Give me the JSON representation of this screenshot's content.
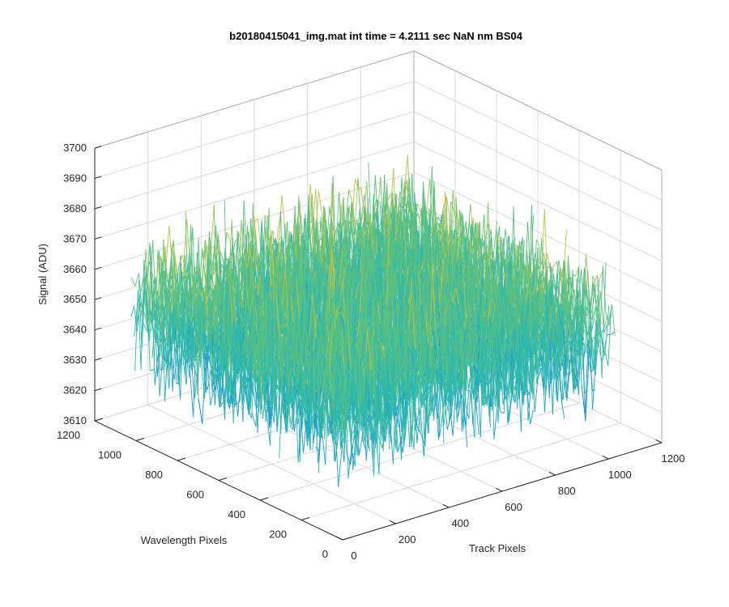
{
  "chart_data": {
    "type": "surface-mesh-3d",
    "title": "b20180415041_img.mat int time = 4.2111 sec  NaN nm BS04",
    "xlabel": "Track Pixels",
    "ylabel": "Wavelength Pixels",
    "zlabel": "Signal (ADU)",
    "xlim": [
      0,
      1200
    ],
    "ylim": [
      0,
      1200
    ],
    "zlim": [
      3610,
      3700
    ],
    "x_ticks": [
      "0",
      "200",
      "400",
      "600",
      "800",
      "1000",
      "1200"
    ],
    "y_ticks": [
      "0",
      "200",
      "400",
      "600",
      "800",
      "1000",
      "1200"
    ],
    "z_ticks": [
      "3610",
      "3620",
      "3630",
      "3640",
      "3650",
      "3660",
      "3670",
      "3680",
      "3690",
      "3700"
    ],
    "data_extent": {
      "x": [
        0,
        1024
      ],
      "y": [
        0,
        1024
      ]
    },
    "signal_mean": 3652,
    "signal_noise_range": [
      3615,
      3695
    ],
    "grid": true,
    "colormap": [
      "#0072BD",
      "#1D9BC9",
      "#2EB8AE",
      "#5CC07F",
      "#B8C24E",
      "#EDC42E"
    ]
  }
}
